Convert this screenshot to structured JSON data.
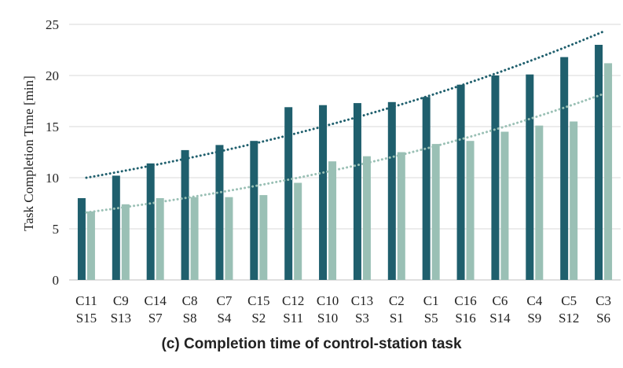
{
  "caption": "(c) Completion time of control-station task",
  "chart_data": {
    "type": "bar",
    "ylabel": "Task Completion Time [min]",
    "xlabel": "",
    "ylim": [
      0,
      25
    ],
    "yticks": [
      0,
      5,
      10,
      15,
      20,
      25
    ],
    "grid": true,
    "legend": "none",
    "categories": [
      [
        "C11",
        "S15"
      ],
      [
        "C9",
        "S13"
      ],
      [
        "C14",
        "S7"
      ],
      [
        "C8",
        "S8"
      ],
      [
        "C7",
        "S4"
      ],
      [
        "C15",
        "S2"
      ],
      [
        "C12",
        "S11"
      ],
      [
        "C10",
        "S10"
      ],
      [
        "C13",
        "S3"
      ],
      [
        "C2",
        "S1"
      ],
      [
        "C1",
        "S5"
      ],
      [
        "C16",
        "S16"
      ],
      [
        "C6",
        "S14"
      ],
      [
        "C4",
        "S9"
      ],
      [
        "C5",
        "S12"
      ],
      [
        "C3",
        "S6"
      ]
    ],
    "series": [
      {
        "color": "#1f5f6d",
        "values": [
          8.0,
          10.2,
          11.4,
          12.7,
          13.2,
          13.6,
          16.9,
          17.1,
          17.3,
          17.4,
          17.9,
          19.1,
          20.0,
          20.1,
          21.8,
          23.0
        ],
        "trendline": {
          "type": "exponential",
          "start": 10.0,
          "end": 24.3,
          "style": "dotted"
        }
      },
      {
        "color": "#9ac0b5",
        "values": [
          6.7,
          7.4,
          8.0,
          8.1,
          8.1,
          8.3,
          9.5,
          11.6,
          12.1,
          12.5,
          13.3,
          13.6,
          14.5,
          15.1,
          15.5,
          21.2
        ],
        "trendline": {
          "type": "exponential",
          "start": 6.6,
          "end": 18.2,
          "style": "dotted"
        }
      }
    ],
    "axis_color": "#bfbfbf",
    "grid_color": "#d9d9d9"
  }
}
